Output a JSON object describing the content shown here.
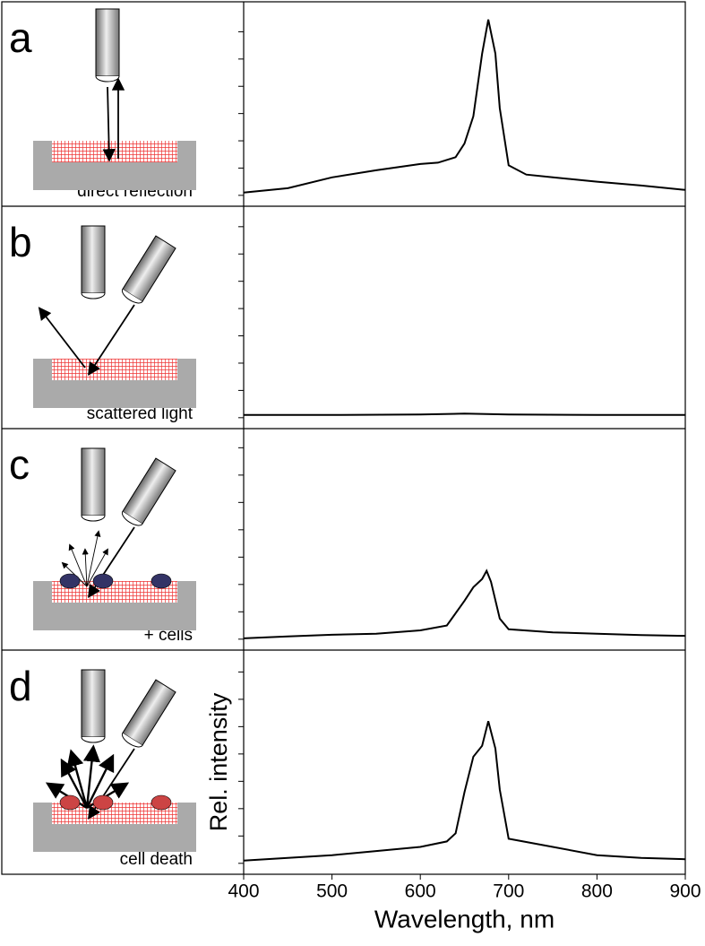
{
  "chart_data": [
    {
      "type": "line",
      "label": "a",
      "caption": "direct reflection",
      "color": "#000000",
      "x": [
        400,
        450,
        500,
        550,
        600,
        620,
        640,
        650,
        660,
        670,
        677,
        685,
        690,
        700,
        720,
        750,
        800,
        850,
        900
      ],
      "values": [
        0.1,
        0.26,
        0.66,
        0.92,
        1.15,
        1.2,
        1.4,
        1.9,
        2.9,
        5.2,
        6.45,
        5.2,
        3.2,
        1.1,
        0.76,
        0.66,
        0.5,
        0.36,
        0.2
      ],
      "xlim": [
        400,
        900
      ],
      "ylim": [
        -0.4,
        7.1
      ],
      "yticks": [
        0,
        1,
        2,
        3,
        4,
        5,
        6
      ]
    },
    {
      "type": "line",
      "label": "b",
      "caption": "scattered light",
      "color": "#000000",
      "x": [
        400,
        500,
        600,
        650,
        700,
        800,
        900
      ],
      "values": [
        0.1,
        0.1,
        0.12,
        0.15,
        0.12,
        0.1,
        0.1
      ],
      "xlim": [
        400,
        900
      ],
      "ylim": [
        -0.4,
        7.75
      ],
      "yticks": [
        0,
        1,
        2,
        3,
        4,
        5,
        6,
        7
      ]
    },
    {
      "type": "line",
      "label": "c",
      "caption": "+ cells",
      "color": "#000000",
      "x": [
        400,
        450,
        500,
        550,
        600,
        630,
        650,
        660,
        670,
        675,
        680,
        690,
        700,
        750,
        800,
        850,
        900
      ],
      "values": [
        0.03,
        0.1,
        0.16,
        0.2,
        0.32,
        0.5,
        1.4,
        1.9,
        2.2,
        2.5,
        2.1,
        0.75,
        0.36,
        0.25,
        0.2,
        0.15,
        0.12
      ],
      "xlim": [
        400,
        900
      ],
      "ylim": [
        -0.4,
        7.7
      ],
      "yticks": [
        0,
        1,
        2,
        3,
        4,
        5,
        6,
        7
      ]
    },
    {
      "type": "line",
      "label": "d",
      "caption": "cell death",
      "color": "#000000",
      "x": [
        400,
        450,
        500,
        550,
        600,
        630,
        640,
        650,
        660,
        670,
        677,
        685,
        690,
        700,
        750,
        800,
        850,
        900
      ],
      "values": [
        0.1,
        0.2,
        0.3,
        0.45,
        0.6,
        0.8,
        1.1,
        2.6,
        3.9,
        4.3,
        5.2,
        4.2,
        2.7,
        0.9,
        0.6,
        0.3,
        0.2,
        0.15
      ],
      "xlim": [
        400,
        900
      ],
      "ylim": [
        -0.4,
        7.8
      ],
      "yticks": [
        0,
        1,
        2,
        3,
        4,
        5,
        6,
        7
      ],
      "xticks": [
        400,
        500,
        600,
        700,
        800,
        900
      ],
      "xlabel": "Wavelength, nm",
      "ylabel": "Rel. intensity"
    }
  ]
}
